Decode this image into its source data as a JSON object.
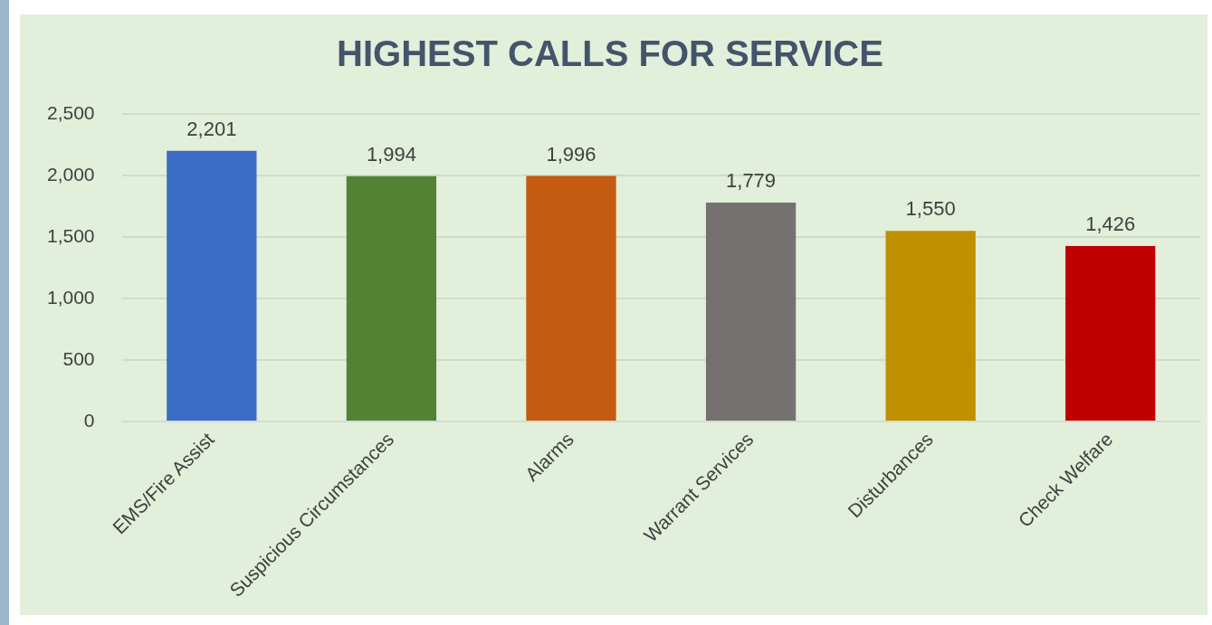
{
  "chart_data": {
    "type": "bar",
    "title": "HIGHEST CALLS FOR SERVICE",
    "categories": [
      "EMS/Fire Assist",
      "Suspicious Circumstances",
      "Alarms",
      "Warrant Services",
      "Disturbances",
      "Check Welfare"
    ],
    "values": [
      2201,
      1994,
      1996,
      1779,
      1550,
      1426
    ],
    "colors": [
      "#3a6cc6",
      "#548235",
      "#c55a11",
      "#767171",
      "#bf9000",
      "#c00000"
    ],
    "ylim": [
      0,
      2500
    ],
    "yticks": [
      {
        "value": 0,
        "label": "0"
      },
      {
        "value": 500,
        "label": "500"
      },
      {
        "value": 1000,
        "label": "1,000"
      },
      {
        "value": 1500,
        "label": "1,500"
      },
      {
        "value": 2000,
        "label": "2,000"
      },
      {
        "value": 2500,
        "label": "2,500"
      }
    ],
    "value_labels": [
      "2,201",
      "1,994",
      "1,996",
      "1,779",
      "1,550",
      "1,426"
    ],
    "grid": "y",
    "legend": false
  }
}
